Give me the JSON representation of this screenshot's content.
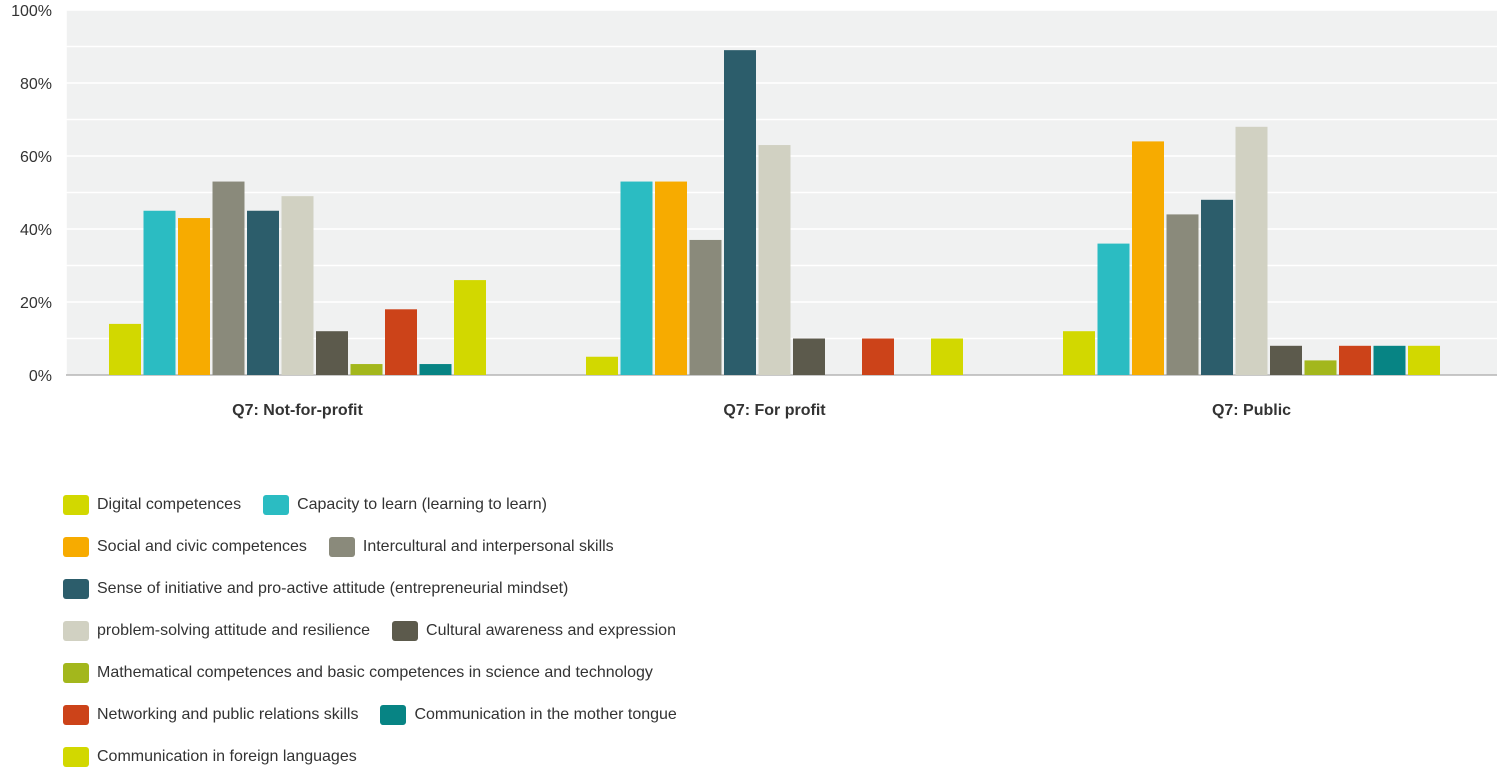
{
  "chart_data": {
    "type": "bar",
    "categories": [
      "Q7: Not-for-profit",
      "Q7: For profit",
      "Q7: Public"
    ],
    "ylim": [
      0,
      100
    ],
    "yticks": [
      "0%",
      "20%",
      "40%",
      "60%",
      "80%",
      "100%"
    ],
    "grid": true,
    "legend_position": "bottom",
    "series": [
      {
        "name": "Digital competences",
        "color": "#d2d800",
        "values": [
          14,
          5,
          12
        ]
      },
      {
        "name": "Capacity to learn (learning to learn)",
        "color": "#2bbcc2",
        "values": [
          45,
          53,
          36
        ]
      },
      {
        "name": "Social and civic competences",
        "color": "#f7ab00",
        "values": [
          43,
          53,
          64
        ]
      },
      {
        "name": "Intercultural and interpersonal skills",
        "color": "#8a8a7b",
        "values": [
          53,
          37,
          44
        ]
      },
      {
        "name": "Sense of initiative and pro-active attitude (entrepreneurial mindset)",
        "color": "#2c5d6b",
        "values": [
          45,
          89,
          48
        ]
      },
      {
        "name": "problem-solving attitude and resilience",
        "color": "#d1d1c2",
        "values": [
          49,
          63,
          68
        ]
      },
      {
        "name": "Cultural awareness and expression",
        "color": "#5c5a4c",
        "values": [
          12,
          10,
          8
        ]
      },
      {
        "name": "Mathematical competences and basic competences in science and technology",
        "color": "#a3b71c",
        "values": [
          3,
          0,
          4
        ]
      },
      {
        "name": "Networking and public relations skills",
        "color": "#cc4319",
        "values": [
          18,
          10,
          8
        ]
      },
      {
        "name": "Communication in the mother tongue",
        "color": "#078484",
        "values": [
          3,
          0,
          8
        ]
      },
      {
        "name": "Communication in foreign languages",
        "color": "#d2d800",
        "values": [
          26,
          10,
          8
        ]
      }
    ]
  },
  "legend_rows": [
    [
      0,
      1
    ],
    [
      2,
      3
    ],
    [
      4
    ],
    [
      5,
      6
    ],
    [
      7
    ],
    [
      8,
      9
    ],
    [
      10
    ]
  ]
}
